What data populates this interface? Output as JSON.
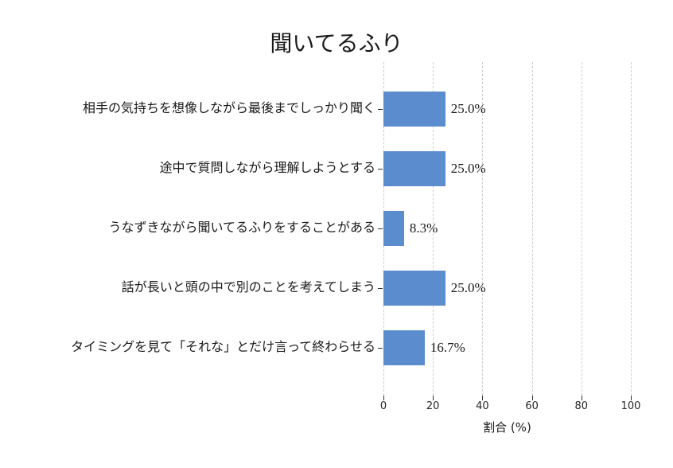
{
  "chart_data": {
    "type": "bar",
    "orientation": "horizontal",
    "title": "聞いてるふり",
    "categories": [
      "相手の気持ちを想像しながら最後までしっかり聞く",
      "途中で質問しながら理解しようとする",
      "うなずきながら聞いてるふりをすることがある",
      "話が長いと頭の中で別のことを考えてしまう",
      "タイミングを見て「それな」とだけ言って終わらせる"
    ],
    "values": [
      25.0,
      25.0,
      8.3,
      25.0,
      16.7
    ],
    "value_labels": [
      "25.0%",
      "25.0%",
      "8.3%",
      "25.0%",
      "16.7%"
    ],
    "xlabel": "割合 (%)",
    "xlim": [
      0,
      100
    ],
    "xticks": [
      0,
      20,
      40,
      60,
      80,
      100
    ],
    "grid": "dashed-vertical",
    "legend": "none",
    "bar_color": "#5b8ccd",
    "grid_color": "#cccccc",
    "text_color": "#1a1a1a",
    "background": "#ffffff"
  }
}
